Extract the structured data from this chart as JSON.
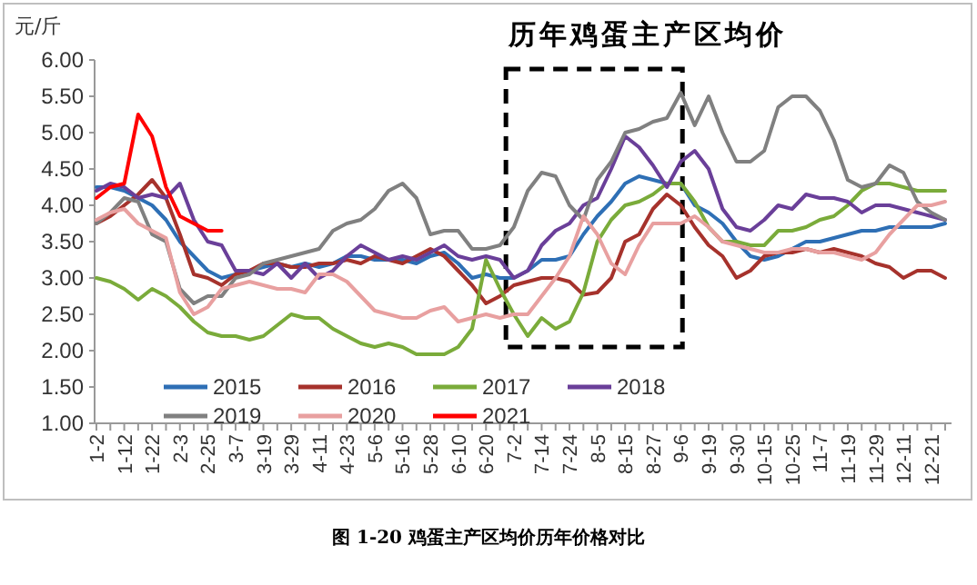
{
  "chart_data": {
    "type": "line",
    "title": "历年鸡蛋主产区均价",
    "ylabel": "元/斤",
    "annotations": [
      "图 1-20 鸡蛋主产区均价历年价格对比"
    ],
    "categories": [
      "1-2",
      null,
      "1-12",
      null,
      "1-22",
      null,
      "2-3",
      null,
      "2-25",
      null,
      "3-7",
      null,
      "3-19",
      null,
      "3-29",
      null,
      "4-11",
      null,
      "4-23",
      null,
      "5-6",
      null,
      "5-16",
      null,
      "5-28",
      null,
      "6-10",
      null,
      "6-20",
      null,
      "7-2",
      null,
      "7-14",
      null,
      "7-24",
      null,
      "8-5",
      null,
      "8-15",
      null,
      "8-27",
      null,
      "9-6",
      null,
      "9-19",
      null,
      "9-30",
      null,
      "10-15",
      null,
      "10-25",
      null,
      "11-7",
      null,
      "11-19",
      null,
      "11-29",
      null,
      "12-11",
      null,
      "12-21",
      null
    ],
    "ylim": [
      1,
      6
    ],
    "yticks": [
      {
        "value": 1,
        "label": "1.00"
      },
      {
        "value": 1.5,
        "label": "1.50"
      },
      {
        "value": 2,
        "label": "2.00"
      },
      {
        "value": 2.5,
        "label": "2.50"
      },
      {
        "value": 3,
        "label": "3.00"
      },
      {
        "value": 3.5,
        "label": "3.50"
      },
      {
        "value": 4,
        "label": "4.00"
      },
      {
        "value": 4.5,
        "label": "4.50"
      },
      {
        "value": 5,
        "label": "5.00"
      },
      {
        "value": 5.5,
        "label": "5.50"
      },
      {
        "value": 6,
        "label": "6.00"
      }
    ],
    "legend": "bottom",
    "marker": "none",
    "line_style": "solid",
    "series": [
      {
        "name": "2015",
        "color": "#2e6fb5",
        "values": [
          4.25,
          4.25,
          4.2,
          4.1,
          4.0,
          3.8,
          3.5,
          3.3,
          3.1,
          3.0,
          3.05,
          3.1,
          3.15,
          3.2,
          3.15,
          3.2,
          3.15,
          3.2,
          3.3,
          3.3,
          3.25,
          3.25,
          3.25,
          3.2,
          3.3,
          3.35,
          3.2,
          3.0,
          3.05,
          3.0,
          3.0,
          3.1,
          3.25,
          3.25,
          3.3,
          3.6,
          3.85,
          4.05,
          4.3,
          4.4,
          4.35,
          4.3,
          4.3,
          4.0,
          3.9,
          3.75,
          3.5,
          3.3,
          3.25,
          3.3,
          3.4,
          3.5,
          3.5,
          3.55,
          3.6,
          3.65,
          3.65,
          3.7,
          3.7,
          3.7,
          3.7,
          3.75
        ]
      },
      {
        "name": "2016",
        "color": "#a6322c",
        "values": [
          3.75,
          3.85,
          4.0,
          4.15,
          4.35,
          4.1,
          3.6,
          3.05,
          3.0,
          2.9,
          3.05,
          3.1,
          3.2,
          3.2,
          3.15,
          3.15,
          3.2,
          3.2,
          3.25,
          3.2,
          3.3,
          3.25,
          3.2,
          3.3,
          3.4,
          3.3,
          3.1,
          2.9,
          2.65,
          2.75,
          2.9,
          2.95,
          3.0,
          3.0,
          2.95,
          2.77,
          2.8,
          3.0,
          3.5,
          3.6,
          3.95,
          4.15,
          4.0,
          3.7,
          3.45,
          3.3,
          3.0,
          3.1,
          3.3,
          3.35,
          3.35,
          3.4,
          3.35,
          3.4,
          3.35,
          3.3,
          3.2,
          3.15,
          3.0,
          3.1,
          3.1,
          3.0
        ]
      },
      {
        "name": "2017",
        "color": "#7aab3a",
        "values": [
          3.0,
          2.95,
          2.85,
          2.7,
          2.85,
          2.75,
          2.6,
          2.4,
          2.25,
          2.2,
          2.2,
          2.15,
          2.2,
          2.35,
          2.5,
          2.45,
          2.45,
          2.3,
          2.2,
          2.1,
          2.05,
          2.1,
          2.05,
          1.95,
          1.95,
          1.95,
          2.05,
          2.3,
          3.25,
          2.85,
          2.5,
          2.2,
          2.45,
          2.3,
          2.4,
          2.8,
          3.5,
          3.8,
          4.0,
          4.05,
          4.15,
          4.3,
          4.3,
          4.05,
          3.7,
          3.5,
          3.5,
          3.45,
          3.45,
          3.65,
          3.65,
          3.7,
          3.8,
          3.85,
          4.0,
          4.2,
          4.3,
          4.3,
          4.25,
          4.2,
          4.2,
          4.2
        ]
      },
      {
        "name": "2018",
        "color": "#6a3f99",
        "values": [
          4.2,
          4.3,
          4.25,
          4.1,
          4.15,
          4.1,
          4.3,
          3.8,
          3.5,
          3.45,
          3.1,
          3.1,
          3.05,
          3.2,
          3.0,
          3.2,
          3.0,
          3.1,
          3.3,
          3.45,
          3.35,
          3.25,
          3.3,
          3.25,
          3.35,
          3.45,
          3.3,
          3.25,
          3.3,
          3.25,
          3.0,
          3.1,
          3.45,
          3.65,
          3.75,
          4.0,
          4.1,
          4.5,
          4.95,
          4.8,
          4.55,
          4.25,
          4.6,
          4.75,
          4.5,
          3.95,
          3.7,
          3.65,
          3.8,
          4.0,
          3.95,
          4.15,
          4.1,
          4.1,
          4.05,
          3.9,
          4.0,
          4.0,
          3.95,
          3.9,
          3.85,
          3.8
        ]
      },
      {
        "name": "2019",
        "color": "#808080",
        "values": [
          3.75,
          3.9,
          4.1,
          4.05,
          3.6,
          3.5,
          2.85,
          2.65,
          2.75,
          2.75,
          3.0,
          3.05,
          3.2,
          3.25,
          3.3,
          3.35,
          3.4,
          3.65,
          3.75,
          3.8,
          3.95,
          4.2,
          4.3,
          4.1,
          3.6,
          3.65,
          3.65,
          3.4,
          3.4,
          3.45,
          3.7,
          4.2,
          4.45,
          4.4,
          4.0,
          3.8,
          4.35,
          4.6,
          5.0,
          5.05,
          5.15,
          5.2,
          5.55,
          5.1,
          5.5,
          5.0,
          4.6,
          4.6,
          4.75,
          5.35,
          5.5,
          5.5,
          5.3,
          4.9,
          4.35,
          4.25,
          4.3,
          4.55,
          4.45,
          4.05,
          3.9,
          3.8
        ]
      },
      {
        "name": "2020",
        "color": "#e8a0a0",
        "values": [
          3.8,
          3.9,
          3.95,
          3.75,
          3.65,
          3.55,
          2.8,
          2.5,
          2.6,
          2.85,
          2.9,
          2.95,
          2.9,
          2.85,
          2.85,
          2.8,
          3.05,
          3.05,
          2.95,
          2.75,
          2.55,
          2.5,
          2.45,
          2.45,
          2.55,
          2.6,
          2.4,
          2.45,
          2.5,
          2.45,
          2.5,
          2.5,
          2.75,
          3.0,
          3.3,
          3.85,
          3.6,
          3.2,
          3.05,
          3.45,
          3.75,
          3.75,
          3.75,
          3.85,
          3.7,
          3.5,
          3.45,
          3.4,
          3.35,
          3.35,
          3.4,
          3.4,
          3.35,
          3.35,
          3.3,
          3.25,
          3.35,
          3.6,
          3.8,
          4.0,
          4.0,
          4.05
        ]
      },
      {
        "name": "2021",
        "color": "#ff0000",
        "values": [
          4.1,
          4.25,
          4.3,
          5.25,
          4.95,
          4.25,
          3.85,
          3.75,
          3.65,
          3.65,
          null,
          null,
          null,
          null,
          null,
          null,
          null,
          null,
          null,
          null,
          null,
          null,
          null,
          null,
          null,
          null,
          null,
          null,
          null,
          null,
          null,
          null,
          null,
          null,
          null,
          null,
          null,
          null,
          null,
          null,
          null,
          null,
          null,
          null,
          null,
          null,
          null,
          null,
          null,
          null,
          null,
          null,
          null,
          null,
          null,
          null,
          null,
          null,
          null,
          null,
          null,
          null
        ]
      }
    ]
  }
}
